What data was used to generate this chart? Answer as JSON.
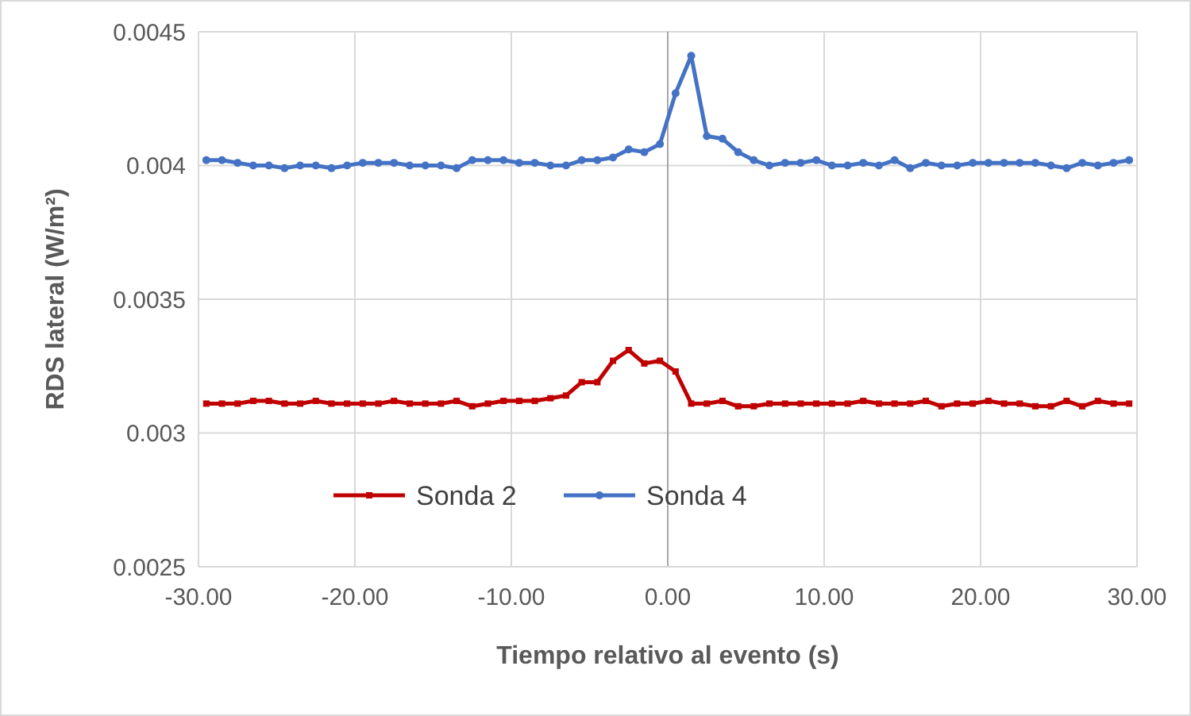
{
  "chart_data": {
    "type": "line",
    "xlabel": "Tiempo relativo al evento (s)",
    "ylabel": "RDS lateral (W/m²)",
    "x": [
      -29.5,
      -28.5,
      -27.5,
      -26.5,
      -25.5,
      -24.5,
      -23.5,
      -22.5,
      -21.5,
      -20.5,
      -19.5,
      -18.5,
      -17.5,
      -16.5,
      -15.5,
      -14.5,
      -13.5,
      -12.5,
      -11.5,
      -10.5,
      -9.5,
      -8.5,
      -7.5,
      -6.5,
      -5.5,
      -4.5,
      -3.5,
      -2.5,
      -1.5,
      -0.5,
      0.5,
      1.5,
      2.5,
      3.5,
      4.5,
      5.5,
      6.5,
      7.5,
      8.5,
      9.5,
      10.5,
      11.5,
      12.5,
      13.5,
      14.5,
      15.5,
      16.5,
      17.5,
      18.5,
      19.5,
      20.5,
      21.5,
      22.5,
      23.5,
      24.5,
      25.5,
      26.5,
      27.5,
      28.5,
      29.5
    ],
    "series": [
      {
        "name": "Sonda 2",
        "color": "#c00000",
        "marker": "square",
        "values": [
          0.00311,
          0.00311,
          0.00311,
          0.00312,
          0.00312,
          0.00311,
          0.00311,
          0.00312,
          0.00311,
          0.00311,
          0.00311,
          0.00311,
          0.00312,
          0.00311,
          0.00311,
          0.00311,
          0.00312,
          0.0031,
          0.00311,
          0.00312,
          0.00312,
          0.00312,
          0.00313,
          0.00314,
          0.00319,
          0.00319,
          0.00327,
          0.00331,
          0.00326,
          0.00327,
          0.00323,
          0.00311,
          0.00311,
          0.00312,
          0.0031,
          0.0031,
          0.00311,
          0.00311,
          0.00311,
          0.00311,
          0.00311,
          0.00311,
          0.00312,
          0.00311,
          0.00311,
          0.00311,
          0.00312,
          0.0031,
          0.00311,
          0.00311,
          0.00312,
          0.00311,
          0.00311,
          0.0031,
          0.0031,
          0.00312,
          0.0031,
          0.00312,
          0.00311,
          0.00311
        ]
      },
      {
        "name": "Sonda 4",
        "color": "#4472c4",
        "marker": "circle",
        "values": [
          0.00402,
          0.00402,
          0.00401,
          0.004,
          0.004,
          0.00399,
          0.004,
          0.004,
          0.00399,
          0.004,
          0.00401,
          0.00401,
          0.00401,
          0.004,
          0.004,
          0.004,
          0.00399,
          0.00402,
          0.00402,
          0.00402,
          0.00401,
          0.00401,
          0.004,
          0.004,
          0.00402,
          0.00402,
          0.00403,
          0.00406,
          0.00405,
          0.00408,
          0.00427,
          0.00441,
          0.00411,
          0.0041,
          0.00405,
          0.00402,
          0.004,
          0.00401,
          0.00401,
          0.00402,
          0.004,
          0.004,
          0.00401,
          0.004,
          0.00402,
          0.00399,
          0.00401,
          0.004,
          0.004,
          0.00401,
          0.00401,
          0.00401,
          0.00401,
          0.00401,
          0.004,
          0.00399,
          0.00401,
          0.004,
          0.00401,
          0.00402
        ]
      }
    ],
    "xlim": [
      -30,
      30
    ],
    "xticks": [
      {
        "value": -30,
        "label": "-30.00"
      },
      {
        "value": -20,
        "label": "-20.00"
      },
      {
        "value": -10,
        "label": "-10.00"
      },
      {
        "value": 0,
        "label": "0.00"
      },
      {
        "value": 10,
        "label": "10.00"
      },
      {
        "value": 20,
        "label": "20.00"
      },
      {
        "value": 30,
        "label": "30.00"
      }
    ],
    "ylim": [
      0.0025,
      0.0045
    ],
    "yticks": [
      0.0025,
      0.003,
      0.0035,
      0.004,
      0.0045
    ],
    "grid": true,
    "legend": "bottom left",
    "line_style": "solid"
  }
}
